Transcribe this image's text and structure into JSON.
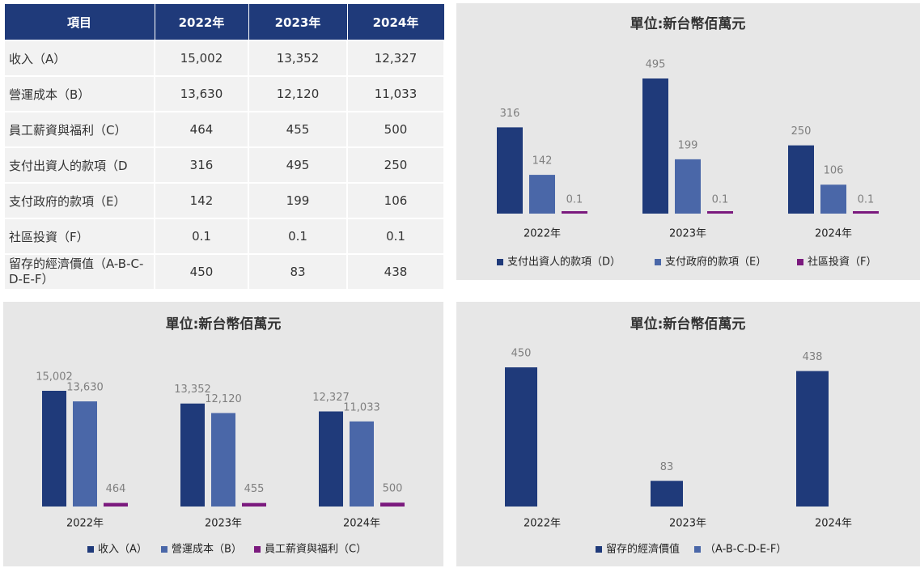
{
  "table": {
    "header": [
      "項目",
      "2022年",
      "2023年",
      "2024年"
    ],
    "rows": [
      [
        "收入（A）",
        "15,002",
        "13,352",
        "12,327"
      ],
      [
        "營運成本（B）",
        "13,630",
        "12,120",
        "11,033"
      ],
      [
        "員工薪資與福利（C）",
        "464",
        "455",
        "500"
      ],
      [
        "支付出資人的款項（D",
        "316",
        "495",
        "250"
      ],
      [
        "支付政府的款項（E）",
        "142",
        "199",
        "106"
      ],
      [
        "社區投資（F）",
        "0.1",
        "0.1",
        "0.1"
      ],
      [
        "留存的經濟價值（A-B-C-D-E-F）",
        "450",
        "83",
        "438"
      ]
    ]
  },
  "chart_data": [
    {
      "type": "bar",
      "title": "單位:新台幣佰萬元",
      "categories": [
        "2022年",
        "2023年",
        "2024年"
      ],
      "series": [
        {
          "name": "支付出資人的款項（D）",
          "color": "#1f3a7a",
          "values": [
            316,
            495,
            250
          ]
        },
        {
          "name": "支付政府的款項（E）",
          "color": "#4a67a8",
          "values": [
            142,
            199,
            106
          ]
        },
        {
          "name": "社區投資（F）",
          "color": "#7b1a7e",
          "values": [
            0.1,
            0.1,
            0.1
          ]
        }
      ]
    },
    {
      "type": "bar",
      "title": "單位:新台幣佰萬元",
      "categories": [
        "2022年",
        "2023年",
        "2024年"
      ],
      "series": [
        {
          "name": "收入（A）",
          "color": "#1f3a7a",
          "values": [
            15002,
            13352,
            12327
          ],
          "value_labels": [
            "15,002",
            "13,352",
            "12,327"
          ]
        },
        {
          "name": "營運成本（B）",
          "color": "#4a67a8",
          "values": [
            13630,
            12120,
            11033
          ],
          "value_labels": [
            "13,630",
            "12,120",
            "11,033"
          ]
        },
        {
          "name": "員工薪資與福利（C）",
          "color": "#7b1a7e",
          "values": [
            464,
            455,
            500
          ]
        }
      ]
    },
    {
      "type": "bar",
      "title": "單位:新台幣佰萬元",
      "categories": [
        "2022年",
        "2023年",
        "2024年"
      ],
      "series": [
        {
          "name": "留存的經濟價值",
          "color": "#1f3a7a",
          "values": [
            450,
            83,
            438
          ]
        },
        {
          "name": "（A-B-C-D-E-F）",
          "color": "#4a67a8",
          "values": [
            null,
            null,
            null
          ]
        }
      ]
    }
  ]
}
